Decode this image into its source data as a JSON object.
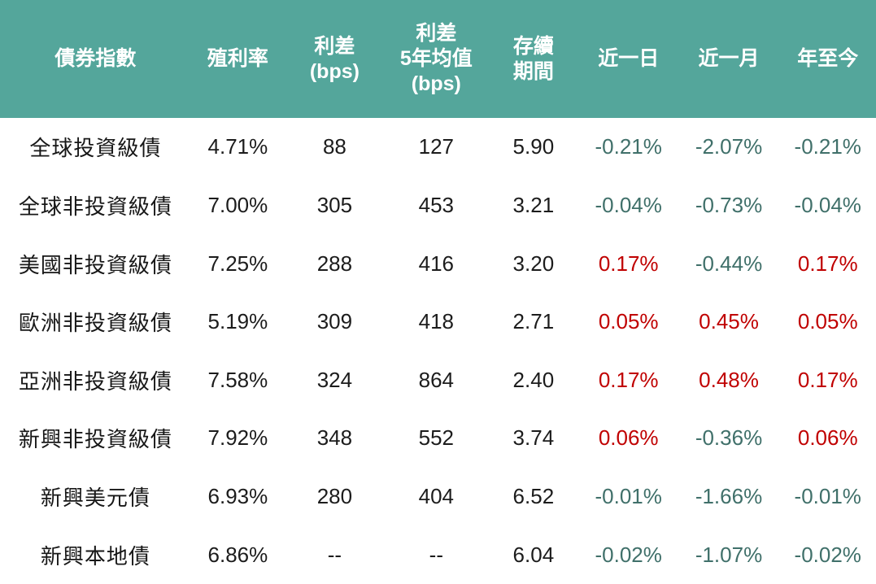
{
  "colors": {
    "header_background": "#54A69B",
    "header_text": "#FFFFFF",
    "body_text": "#1C1C1C",
    "negative_change": "#40706A",
    "positive_change": "#C00000"
  },
  "chart_data": {
    "type": "table",
    "title": "",
    "columns": [
      {
        "id": "index_name",
        "label": "債券指數"
      },
      {
        "id": "yield",
        "label": "殖利率"
      },
      {
        "id": "spread_bps",
        "label": "利差\n(bps)"
      },
      {
        "id": "spread_5y_avg_bps",
        "label": "利差\n5年均值\n(bps)"
      },
      {
        "id": "duration",
        "label": "存續\n期間"
      },
      {
        "id": "day_1",
        "label": "近一日"
      },
      {
        "id": "month_1",
        "label": "近一月"
      },
      {
        "id": "ytd",
        "label": "年至今"
      }
    ],
    "change_columns": [
      "day_1",
      "month_1",
      "ytd"
    ],
    "rows": [
      {
        "index_name": "全球投資級債",
        "yield": "4.71%",
        "spread_bps": "88",
        "spread_5y_avg_bps": "127",
        "duration": "5.90",
        "day_1": "-0.21%",
        "month_1": "-2.07%",
        "ytd": "-0.21%"
      },
      {
        "index_name": "全球非投資級債",
        "yield": "7.00%",
        "spread_bps": "305",
        "spread_5y_avg_bps": "453",
        "duration": "3.21",
        "day_1": "-0.04%",
        "month_1": "-0.73%",
        "ytd": "-0.04%"
      },
      {
        "index_name": "美國非投資級債",
        "yield": "7.25%",
        "spread_bps": "288",
        "spread_5y_avg_bps": "416",
        "duration": "3.20",
        "day_1": "0.17%",
        "month_1": "-0.44%",
        "ytd": "0.17%"
      },
      {
        "index_name": "歐洲非投資級債",
        "yield": "5.19%",
        "spread_bps": "309",
        "spread_5y_avg_bps": "418",
        "duration": "2.71",
        "day_1": "0.05%",
        "month_1": "0.45%",
        "ytd": "0.05%"
      },
      {
        "index_name": "亞洲非投資級債",
        "yield": "7.58%",
        "spread_bps": "324",
        "spread_5y_avg_bps": "864",
        "duration": "2.40",
        "day_1": "0.17%",
        "month_1": "0.48%",
        "ytd": "0.17%"
      },
      {
        "index_name": "新興非投資級債",
        "yield": "7.92%",
        "spread_bps": "348",
        "spread_5y_avg_bps": "552",
        "duration": "3.74",
        "day_1": "0.06%",
        "month_1": "-0.36%",
        "ytd": "0.06%"
      },
      {
        "index_name": "新興美元債",
        "yield": "6.93%",
        "spread_bps": "280",
        "spread_5y_avg_bps": "404",
        "duration": "6.52",
        "day_1": "-0.01%",
        "month_1": "-1.66%",
        "ytd": "-0.01%"
      },
      {
        "index_name": "新興本地債",
        "yield": "6.86%",
        "spread_bps": "--",
        "spread_5y_avg_bps": "--",
        "duration": "6.04",
        "day_1": "-0.02%",
        "month_1": "-1.07%",
        "ytd": "-0.02%"
      }
    ]
  }
}
